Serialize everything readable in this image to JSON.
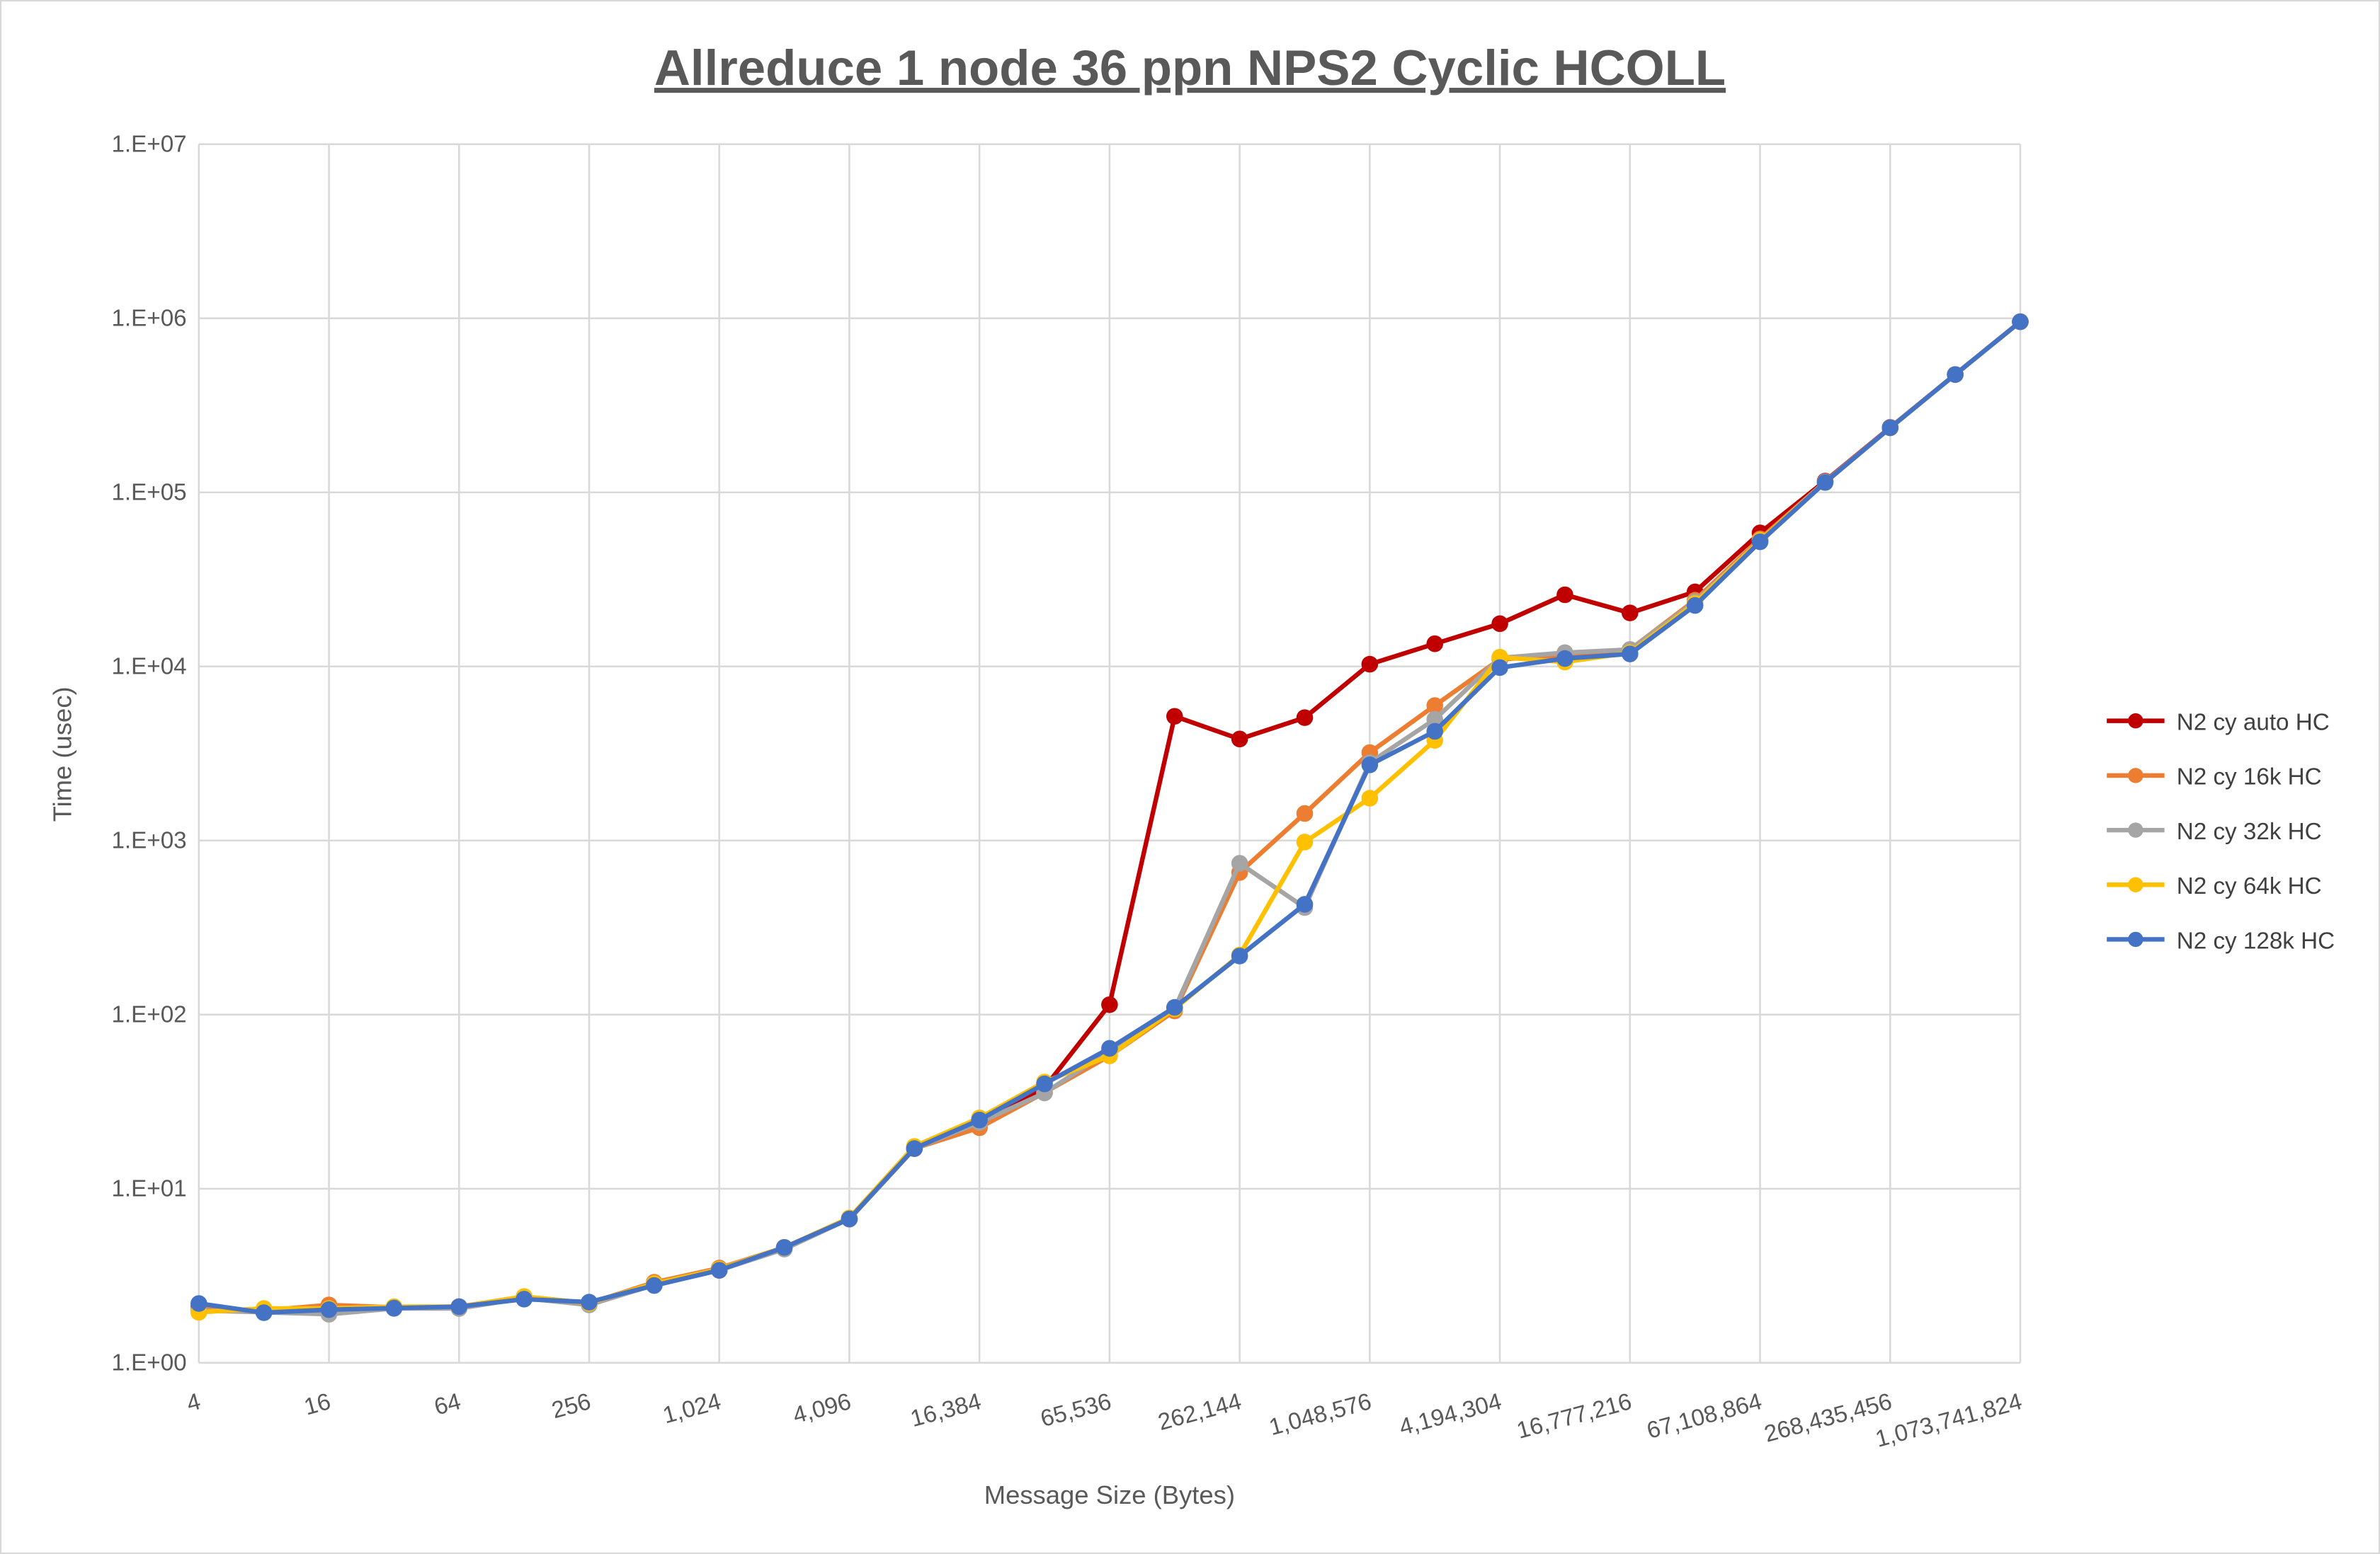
{
  "chart_data": {
    "type": "line",
    "title": "Allreduce 1 node 36 ppn NPS2 Cyclic HCOLL",
    "xlabel": "Message Size (Bytes)",
    "ylabel": "Time (usec)",
    "x_scale": "log2",
    "y_scale": "log10",
    "ylim": [
      1,
      10000000
    ],
    "grid": true,
    "legend_position": "right",
    "x": [
      4,
      8,
      16,
      32,
      64,
      128,
      256,
      512,
      1024,
      2048,
      4096,
      8192,
      16384,
      32768,
      65536,
      131072,
      262144,
      524288,
      1048576,
      2097152,
      4194304,
      8388608,
      16777216,
      33554432,
      67108864,
      134217728,
      268435456,
      536870912,
      1073741824
    ],
    "x_tick_labels": [
      "4",
      "16",
      "64",
      "256",
      "1,024",
      "4,096",
      "16,384",
      "65,536",
      "262,144",
      "1,048,576",
      "4,194,304",
      "16,777,216",
      "67,108,864",
      "268,435,456",
      "1,073,741,824"
    ],
    "y_tick_labels": [
      "1.E+00",
      "1.E+01",
      "1.E+02",
      "1.E+03",
      "1.E+04",
      "1.E+05",
      "1.E+06",
      "1.E+07"
    ],
    "series": [
      {
        "name": "N2 cy auto HC",
        "color": "#C00000",
        "values": [
          2.1,
          1.95,
          2.05,
          2.06,
          2.1,
          2.35,
          2.2,
          2.8,
          3.4,
          4.6,
          6.7,
          17,
          24,
          38,
          114,
          5170,
          3830,
          5080,
          10300,
          13500,
          17600,
          25800,
          20300,
          26800,
          58500,
          116000,
          236000,
          475000,
          955000
        ]
      },
      {
        "name": "N2 cy 16k HC",
        "color": "#ED7D31",
        "values": [
          2.05,
          2.0,
          2.15,
          2.08,
          2.1,
          2.4,
          2.2,
          2.9,
          3.5,
          4.6,
          6.7,
          17,
          22.4,
          35.6,
          58,
          105,
          655,
          1430,
          3200,
          5960,
          11000,
          11500,
          12500,
          24000,
          54000,
          115000,
          235000,
          475000,
          955000
        ]
      },
      {
        "name": "N2 cy 32k HC",
        "color": "#A5A5A5",
        "values": [
          2.0,
          1.95,
          1.9,
          2.05,
          2.05,
          2.35,
          2.15,
          2.8,
          3.4,
          4.5,
          6.7,
          17,
          24,
          35.5,
          62,
          108,
          740,
          412,
          2800,
          4970,
          11200,
          12000,
          12500,
          23500,
          53000,
          115000,
          235000,
          475000,
          955000
        ]
      },
      {
        "name": "N2 cy 64k HC",
        "color": "#FFC000",
        "values": [
          1.95,
          2.05,
          2.05,
          2.1,
          2.1,
          2.4,
          2.2,
          2.85,
          3.45,
          4.6,
          6.8,
          17.5,
          25.5,
          41,
          58,
          108,
          220,
          980,
          1750,
          3760,
          11300,
          10600,
          12000,
          23000,
          53000,
          114000,
          235000,
          475000,
          955000
        ]
      },
      {
        "name": "N2 cy 128k HC",
        "color": "#4472C4",
        "values": [
          2.19,
          1.94,
          2.02,
          2.06,
          2.1,
          2.32,
          2.23,
          2.78,
          3.4,
          4.6,
          6.7,
          17,
          24.8,
          40,
          64,
          110,
          217,
          430,
          2720,
          4240,
          9850,
          11100,
          11800,
          22400,
          52000,
          114000,
          235000,
          475000,
          955000
        ]
      }
    ]
  }
}
